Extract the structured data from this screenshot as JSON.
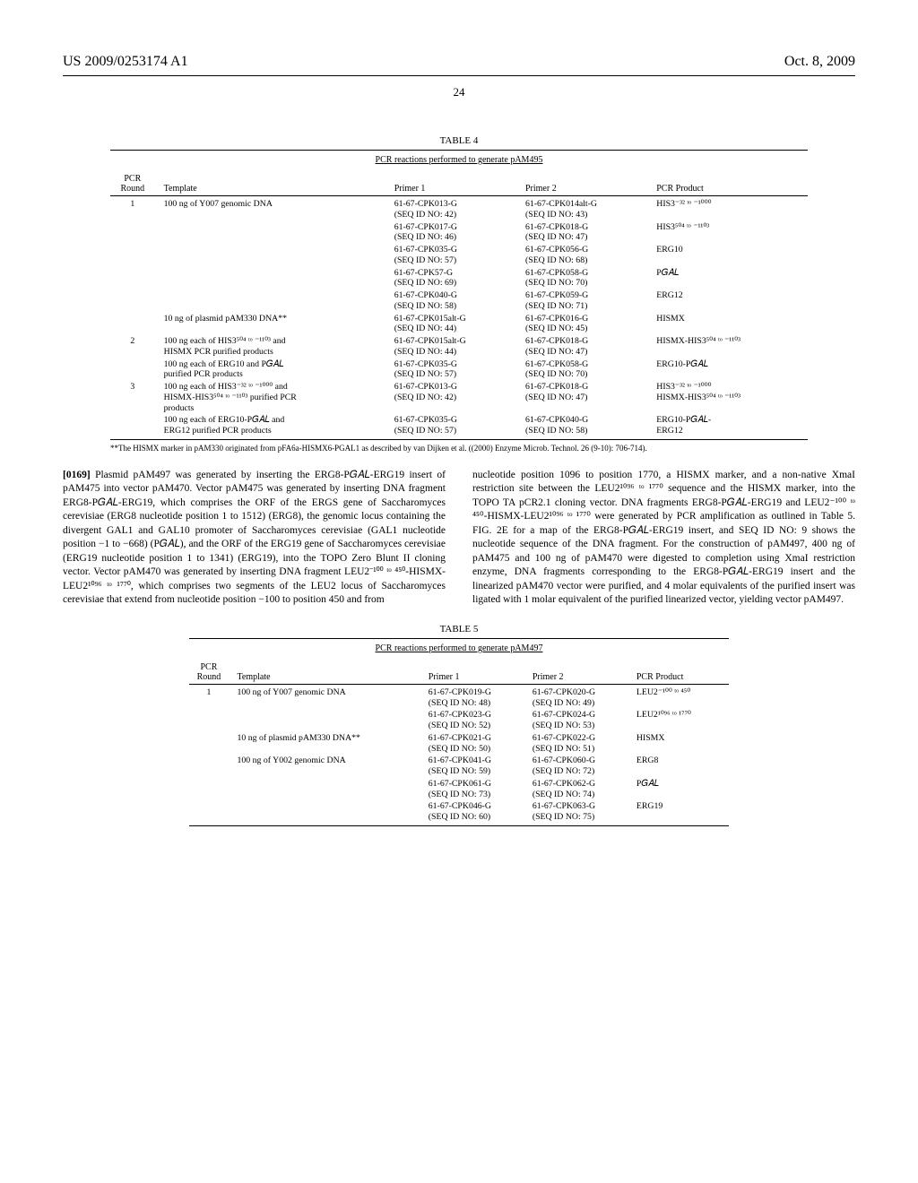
{
  "header": {
    "pub_id": "US 2009/0253174 A1",
    "pub_date": "Oct. 8, 2009",
    "page_num": "24"
  },
  "table4": {
    "label": "TABLE 4",
    "subtitle": "PCR reactions performed to generate pAM495",
    "cols": [
      "PCR\nRound",
      "Template",
      "Primer 1",
      "Primer 2",
      "PCR Product"
    ],
    "rows": [
      {
        "r": "1",
        "t": "100 ng of Y007 genomic DNA",
        "p1": "61-67-CPK013-G\n(SEQ ID NO: 42)",
        "p2": "61-67-CPK014alt-G\n(SEQ ID NO: 43)",
        "pr": "HIS3⁻³² ᵗᵒ ⁻¹⁰⁰⁰"
      },
      {
        "r": "",
        "t": "",
        "p1": "61-67-CPK017-G\n(SEQ ID NO: 46)",
        "p2": "61-67-CPK018-G\n(SEQ ID NO: 47)",
        "pr": "HIS3⁵⁰⁴ ᵗᵒ ⁻¹¹⁰³"
      },
      {
        "r": "",
        "t": "",
        "p1": "61-67-CPK035-G\n(SEQ ID NO: 57)",
        "p2": "61-67-CPK056-G\n(SEQ ID NO: 68)",
        "pr": "ERG10"
      },
      {
        "r": "",
        "t": "",
        "p1": "61-67-CPK57-G\n(SEQ ID NO: 69)",
        "p2": "61-67-CPK058-G\n(SEQ ID NO: 70)",
        "pr": "P𝐺𝐴𝐿"
      },
      {
        "r": "",
        "t": "",
        "p1": "61-67-CPK040-G\n(SEQ ID NO: 58)",
        "p2": "61-67-CPK059-G\n(SEQ ID NO: 71)",
        "pr": "ERG12"
      },
      {
        "r": "",
        "t": "10 ng of plasmid pAM330 DNA**",
        "p1": "61-67-CPK015alt-G\n(SEQ ID NO: 44)",
        "p2": "61-67-CPK016-G\n(SEQ ID NO: 45)",
        "pr": "HISMX"
      },
      {
        "r": "2",
        "t": "100 ng each of HIS3⁵⁰⁴ ᵗᵒ ⁻¹¹⁰³ and\nHISMX PCR purified products",
        "p1": "61-67-CPK015alt-G\n(SEQ ID NO: 44)",
        "p2": "61-67-CPK018-G\n(SEQ ID NO: 47)",
        "pr": "HISMX-HIS3⁵⁰⁴ ᵗᵒ ⁻¹¹⁰³"
      },
      {
        "r": "",
        "t": "100 ng each of ERG10 and P𝐺𝐴𝐿\npurified PCR products",
        "p1": "61-67-CPK035-G\n(SEQ ID NO: 57)",
        "p2": "61-67-CPK058-G\n(SEQ ID NO: 70)",
        "pr": "ERG10-P𝐺𝐴𝐿"
      },
      {
        "r": "3",
        "t": "100 ng each of HIS3⁻³² ᵗᵒ ⁻¹⁰⁰⁰ and\nHISMX-HIS3⁵⁰⁴ ᵗᵒ ⁻¹¹⁰³ purified PCR\nproducts",
        "p1": "61-67-CPK013-G\n(SEQ ID NO: 42)",
        "p2": "61-67-CPK018-G\n(SEQ ID NO: 47)",
        "pr": "HIS3⁻³² ᵗᵒ ⁻¹⁰⁰⁰\nHISMX-HIS3⁵⁰⁴ ᵗᵒ ⁻¹¹⁰³"
      },
      {
        "r": "",
        "t": "100 ng each of ERG10-P𝐺𝐴𝐿 and\nERG12 purified PCR products",
        "p1": "61-67-CPK035-G\n(SEQ ID NO: 57)",
        "p2": "61-67-CPK040-G\n(SEQ ID NO: 58)",
        "pr": "ERG10-P𝐺𝐴𝐿-\nERG12"
      }
    ],
    "footnote": "**The HISMX marker in pAM330 originated from pFA6a-HISMX6-PGAL1 as described by van Dijken et al. ((2000) Enzyme Microb. Technol. 26 (9-10): 706-714)."
  },
  "body": {
    "para_num": "[0169]",
    "col1": "Plasmid pAM497 was generated by inserting the ERG8-P𝐺𝐴𝐿-ERG19 insert of pAM475 into vector pAM470. Vector pAM475 was generated by inserting DNA fragment ERG8-P𝐺𝐴𝐿-ERG19, which comprises the ORF of the ERGS gene of Saccharomyces cerevisiae (ERG8 nucleotide position 1 to 1512) (ERG8), the genomic locus containing the divergent GAL1 and GAL10 promoter of Saccharomyces cerevisiae (GAL1 nucleotide position −1 to −668) (P𝐺𝐴𝐿), and the ORF of the ERG19 gene of Saccharomyces cerevisiae (ERG19 nucleotide position 1 to 1341) (ERG19), into the TOPO Zero Blunt II cloning vector. Vector pAM470 was generated by inserting DNA fragment LEU2⁻¹⁰⁰ ᵗᵒ ⁴⁵⁰-HISMX-LEU2¹⁰⁹⁶ ᵗᵒ ¹⁷⁷⁰, which comprises two segments of the LEU2 locus of Saccharomyces cerevisiae that extend from nucleotide position −100 to position 450 and from",
    "col2": "nucleotide position 1096 to position 1770, a HISMX marker, and a non-native XmaI restriction site between the LEU2¹⁰⁹⁶ ᵗᵒ ¹⁷⁷⁰ sequence and the HISMX marker, into the TOPO TA pCR2.1 cloning vector. DNA fragments ERG8-P𝐺𝐴𝐿-ERG19 and LEU2⁻¹⁰⁰ ᵗᵒ ⁴⁵⁰-HISMX-LEU2¹⁰⁹⁶ ᵗᵒ ¹⁷⁷⁰ were generated by PCR amplification as outlined in Table 5. FIG. 2E for a map of the ERG8-P𝐺𝐴𝐿-ERG19 insert, and SEQ ID NO: 9 shows the nucleotide sequence of the DNA fragment. For the construction of pAM497, 400 ng of pAM475 and 100 ng of pAM470 were digested to completion using XmaI restriction enzyme, DNA fragments corresponding to the ERG8-P𝐺𝐴𝐿-ERG19 insert and the linearized pAM470 vector were purified, and 4 molar equivalents of the purified insert was ligated with 1 molar equivalent of the purified linearized vector, yielding vector pAM497."
  },
  "table5": {
    "label": "TABLE 5",
    "subtitle": "PCR reactions performed to generate pAM497",
    "cols": [
      "PCR\nRound",
      "Template",
      "Primer 1",
      "Primer 2",
      "PCR Product"
    ],
    "rows": [
      {
        "r": "1",
        "t": "100 ng of Y007 genomic DNA",
        "p1": "61-67-CPK019-G\n(SEQ ID NO: 48)",
        "p2": "61-67-CPK020-G\n(SEQ ID NO: 49)",
        "pr": "LEU2⁻¹⁰⁰ ᵗᵒ ⁴⁵⁰"
      },
      {
        "r": "",
        "t": "",
        "p1": "61-67-CPK023-G\n(SEQ ID NO: 52)",
        "p2": "61-67-CPK024-G\n(SEQ ID NO: 53)",
        "pr": "LEU2¹⁰⁹⁶ ᵗᵒ ¹⁷⁷⁰"
      },
      {
        "r": "",
        "t": "10 ng of plasmid pAM330 DNA**",
        "p1": "61-67-CPK021-G\n(SEQ ID NO: 50)",
        "p2": "61-67-CPK022-G\n(SEQ ID NO: 51)",
        "pr": "HISMX"
      },
      {
        "r": "",
        "t": "100 ng of Y002 genomic DNA",
        "p1": "61-67-CPK041-G\n(SEQ ID NO: 59)",
        "p2": "61-67-CPK060-G\n(SEQ ID NO: 72)",
        "pr": "ERG8"
      },
      {
        "r": "",
        "t": "",
        "p1": "61-67-CPK061-G\n(SEQ ID NO: 73)",
        "p2": "61-67-CPK062-G\n(SEQ ID NO: 74)",
        "pr": "P𝐺𝐴𝐿"
      },
      {
        "r": "",
        "t": "",
        "p1": "61-67-CPK046-G\n(SEQ ID NO: 60)",
        "p2": "61-67-CPK063-G\n(SEQ ID NO: 75)",
        "pr": "ERG19"
      }
    ]
  }
}
